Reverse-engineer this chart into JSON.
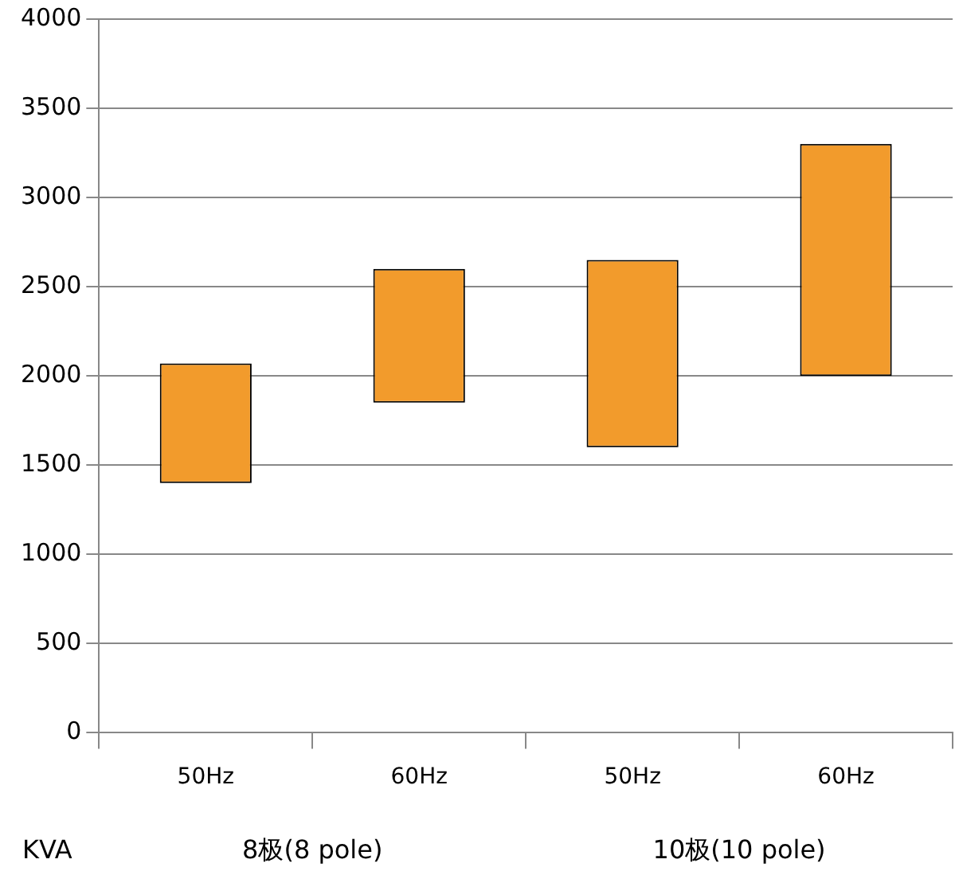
{
  "chart_data": {
    "type": "bar",
    "categories": [
      "50Hz",
      "60Hz",
      "50Hz",
      "60Hz"
    ],
    "base": [
      1400,
      1850,
      1600,
      2000
    ],
    "values": [
      670,
      750,
      1050,
      1300
    ],
    "color": "#f29b2c",
    "ylim": [
      0,
      4000
    ],
    "yticks": [
      0,
      500,
      1000,
      1500,
      2000,
      2500,
      3000,
      3500,
      4000
    ],
    "grid": "y",
    "legend": false,
    "ylabel": "KVA",
    "annotations": [
      "8极(8 pole)",
      "10极(10 pole)"
    ]
  }
}
